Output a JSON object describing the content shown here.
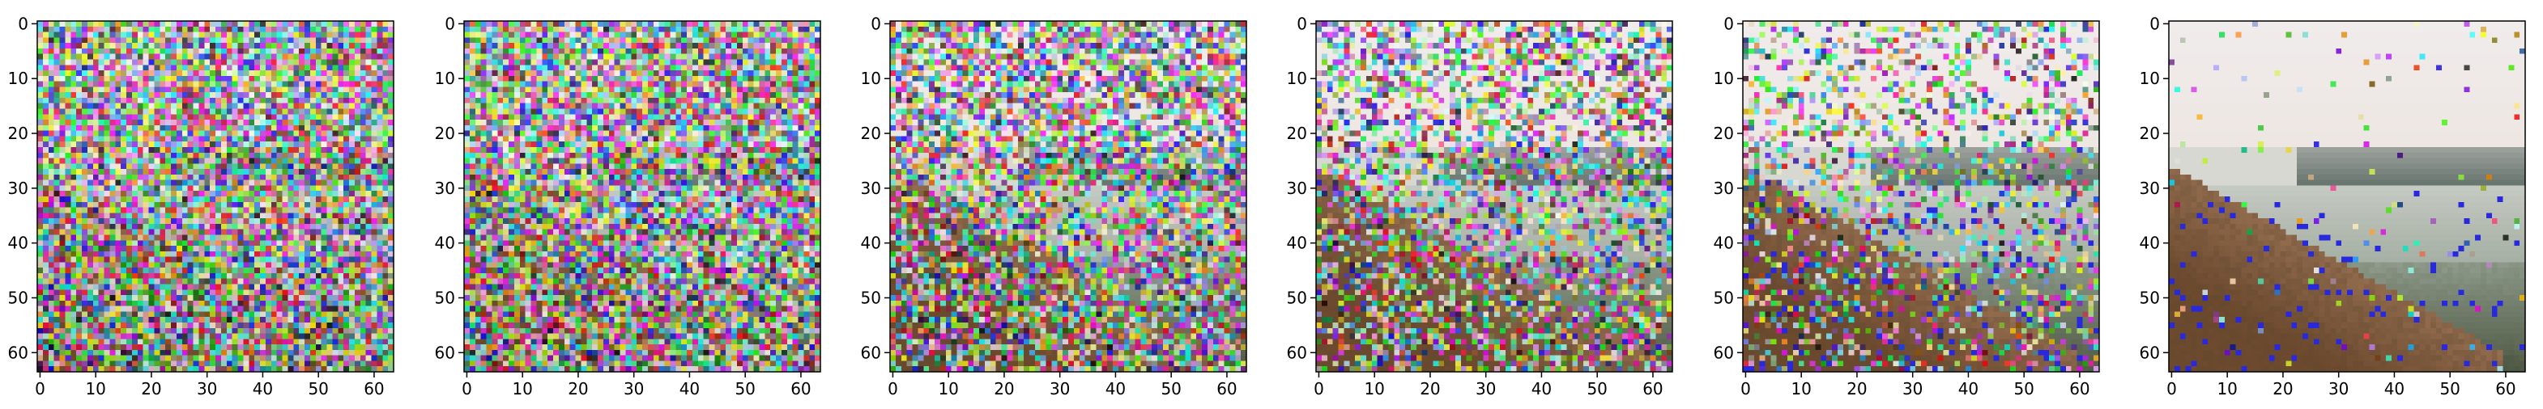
{
  "figure": {
    "panel_count": 6,
    "description_free": true
  },
  "chart_data": [
    {
      "type": "heatmap",
      "panel": 1,
      "noise_level": 1.0,
      "horizon_row": 28,
      "xlim": [
        0,
        63
      ],
      "ylim": [
        63,
        0
      ],
      "x_ticks": [
        0,
        10,
        20,
        30,
        40,
        50,
        60
      ],
      "y_ticks": [
        0,
        10,
        20,
        30,
        40,
        50,
        60
      ],
      "x_tick_labels": [
        "0",
        "10",
        "20",
        "30",
        "40",
        "50",
        "60"
      ],
      "y_tick_labels": [
        "0",
        "10",
        "20",
        "30",
        "40",
        "50",
        "60"
      ]
    },
    {
      "type": "heatmap",
      "panel": 2,
      "noise_level": 0.97,
      "horizon_row": 28,
      "xlim": [
        0,
        63
      ],
      "ylim": [
        63,
        0
      ],
      "x_ticks": [
        0,
        10,
        20,
        30,
        40,
        50,
        60
      ],
      "y_ticks": [
        0,
        10,
        20,
        30,
        40,
        50,
        60
      ],
      "x_tick_labels": [
        "0",
        "10",
        "20",
        "30",
        "40",
        "50",
        "60"
      ],
      "y_tick_labels": [
        "0",
        "10",
        "20",
        "30",
        "40",
        "50",
        "60"
      ]
    },
    {
      "type": "heatmap",
      "panel": 3,
      "noise_level": 0.8,
      "horizon_row": 28,
      "xlim": [
        0,
        63
      ],
      "ylim": [
        63,
        0
      ],
      "x_ticks": [
        0,
        10,
        20,
        30,
        40,
        50,
        60
      ],
      "y_ticks": [
        0,
        10,
        20,
        30,
        40,
        50,
        60
      ],
      "x_tick_labels": [
        "0",
        "10",
        "20",
        "30",
        "40",
        "50",
        "60"
      ],
      "y_tick_labels": [
        "0",
        "10",
        "20",
        "30",
        "40",
        "50",
        "60"
      ]
    },
    {
      "type": "heatmap",
      "panel": 4,
      "noise_level": 0.6,
      "horizon_row": 28,
      "xlim": [
        0,
        63
      ],
      "ylim": [
        63,
        0
      ],
      "x_ticks": [
        0,
        10,
        20,
        30,
        40,
        50,
        60
      ],
      "y_ticks": [
        0,
        10,
        20,
        30,
        40,
        50,
        60
      ],
      "x_tick_labels": [
        "0",
        "10",
        "20",
        "30",
        "40",
        "50",
        "60"
      ],
      "y_tick_labels": [
        "0",
        "10",
        "20",
        "30",
        "40",
        "50",
        "60"
      ]
    },
    {
      "type": "heatmap",
      "panel": 5,
      "noise_level": 0.38,
      "horizon_row": 28,
      "xlim": [
        0,
        63
      ],
      "ylim": [
        63,
        0
      ],
      "x_ticks": [
        0,
        10,
        20,
        30,
        40,
        50,
        60
      ],
      "y_ticks": [
        0,
        10,
        20,
        30,
        40,
        50,
        60
      ],
      "x_tick_labels": [
        "0",
        "10",
        "20",
        "30",
        "40",
        "50",
        "60"
      ],
      "y_tick_labels": [
        "0",
        "10",
        "20",
        "30",
        "40",
        "50",
        "60"
      ]
    },
    {
      "type": "heatmap",
      "panel": 6,
      "noise_level": 0.03,
      "horizon_row": 28,
      "xlim": [
        0,
        63
      ],
      "ylim": [
        63,
        0
      ],
      "x_ticks": [
        0,
        10,
        20,
        30,
        40,
        50,
        60
      ],
      "y_ticks": [
        0,
        10,
        20,
        30,
        40,
        50,
        60
      ],
      "x_tick_labels": [
        "0",
        "10",
        "20",
        "30",
        "40",
        "50",
        "60"
      ],
      "y_tick_labels": [
        "0",
        "10",
        "20",
        "30",
        "40",
        "50",
        "60"
      ]
    }
  ],
  "colors": {
    "axis_line": "#000000",
    "sky": "#ede6e2",
    "hill_brown": "#6e4a2e",
    "fog": "#c4c9c2",
    "water": "#8f9c8d",
    "far_hill": "#62706a"
  }
}
